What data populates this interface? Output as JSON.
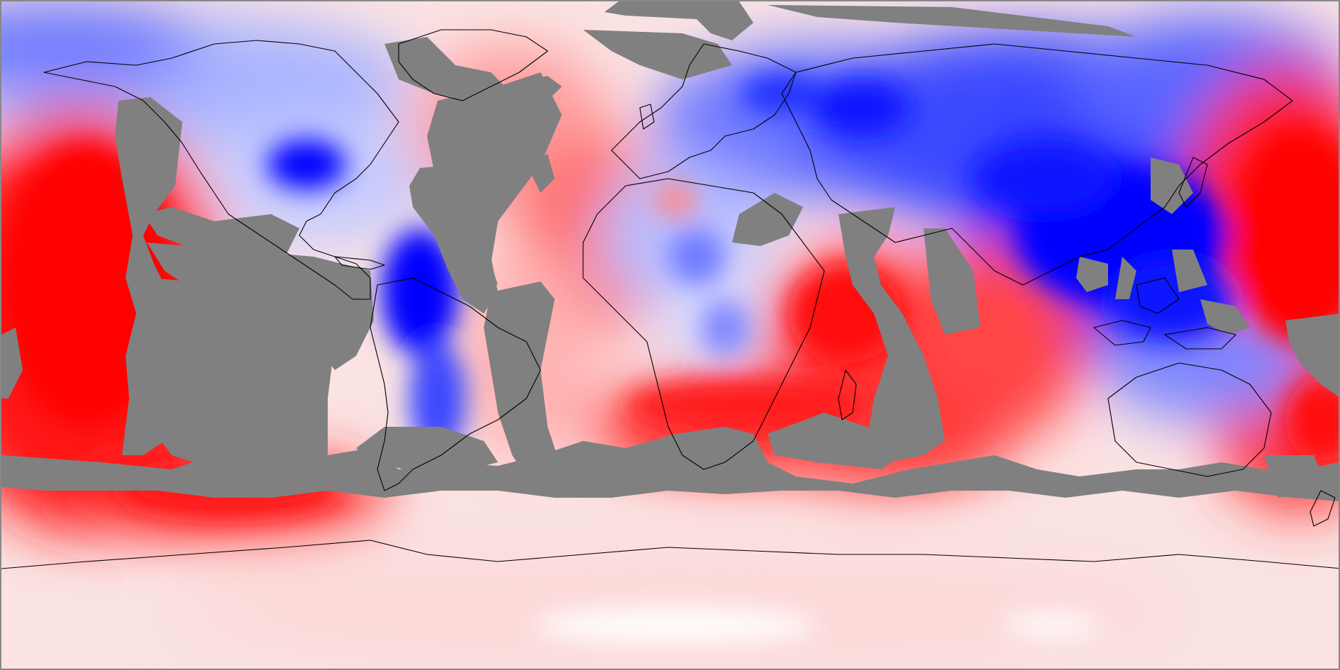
{
  "map": {
    "projection": "equirectangular",
    "extent": {
      "lon": [
        -180,
        180
      ],
      "lat": [
        -90,
        90
      ]
    },
    "field_colormap": [
      "#0000ff",
      "#ffffff",
      "#ff0000"
    ],
    "nodata_color": "#808080",
    "coastline_color": "#000000",
    "border_color": "#888888"
  }
}
